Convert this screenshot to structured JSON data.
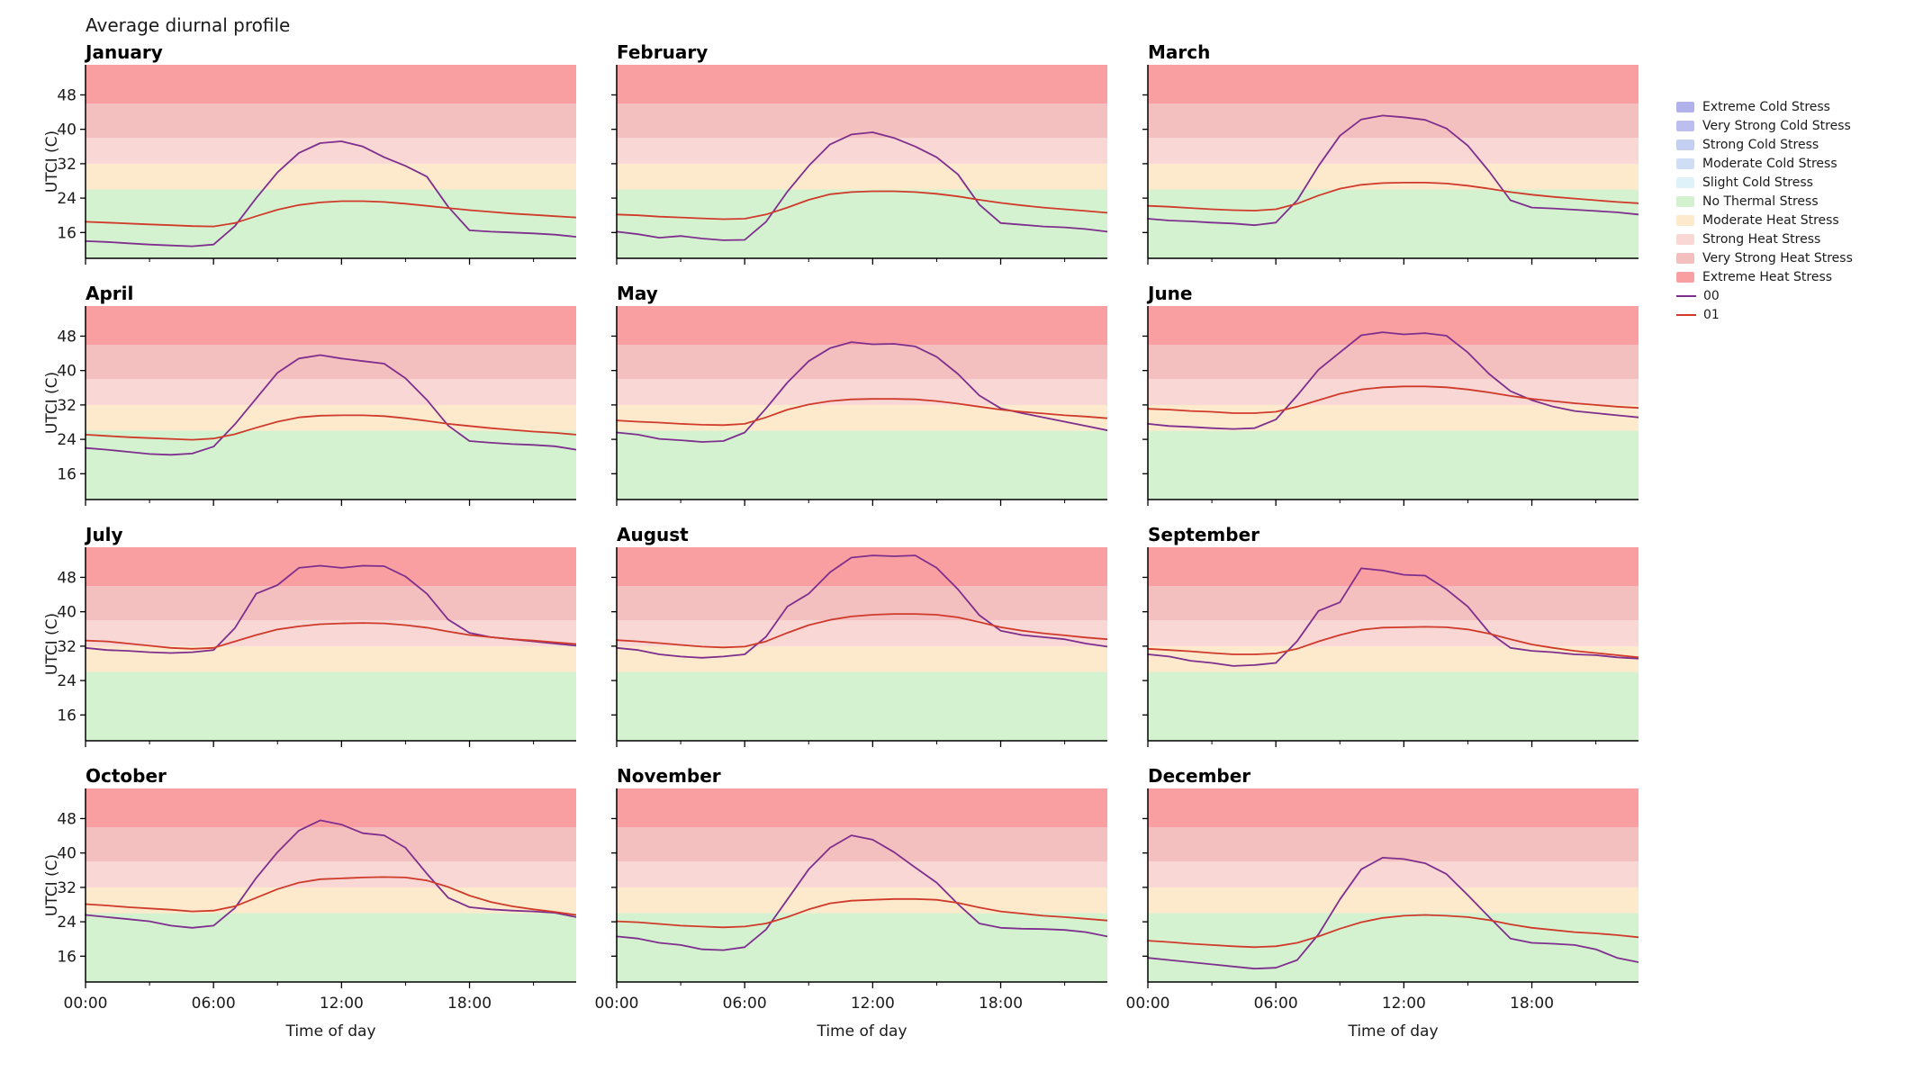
{
  "title": "Average diurnal profile",
  "chart_data": {
    "type": "line",
    "xlabel": "Time of day",
    "ylabel": "UTCI (C)",
    "x_ticks": [
      "00:00",
      "06:00",
      "12:00",
      "18:00"
    ],
    "x_tick_hours": [
      0,
      6,
      12,
      18
    ],
    "x_minor_hours": [
      3,
      9,
      15,
      21
    ],
    "y_ticks": [
      16,
      24,
      32,
      40,
      48
    ],
    "ylim": [
      10,
      55
    ],
    "xlim_hours": [
      0,
      23
    ],
    "bands": [
      {
        "label": "Extreme Cold Stress",
        "color": "#b1b1eb",
        "from": -100,
        "to": -40
      },
      {
        "label": "Very Strong Cold Stress",
        "color": "#bbbeee",
        "from": -40,
        "to": -27
      },
      {
        "label": "Strong Cold Stress",
        "color": "#c5cff2",
        "from": -27,
        "to": -13
      },
      {
        "label": "Moderate Cold Stress",
        "color": "#d0def5",
        "from": -13,
        "to": 0
      },
      {
        "label": "Slight Cold Stress",
        "color": "#def2fa",
        "from": 0,
        "to": 9
      },
      {
        "label": "No Thermal Stress",
        "color": "#d5f2d0",
        "from": 9,
        "to": 26
      },
      {
        "label": "Moderate Heat Stress",
        "color": "#fdeacc",
        "from": 26,
        "to": 32
      },
      {
        "label": "Strong Heat Stress",
        "color": "#f8d7d4",
        "from": 32,
        "to": 38
      },
      {
        "label": "Very Strong Heat Stress",
        "color": "#f4bfbf",
        "from": 38,
        "to": 46
      },
      {
        "label": "Extreme Heat Stress",
        "color": "#f99fa1",
        "from": 46,
        "to": 100
      }
    ],
    "series": [
      {
        "name": "00",
        "color": "#7e2f8e"
      },
      {
        "name": "01",
        "color": "#d03a2b"
      }
    ],
    "months": [
      {
        "name": "January",
        "values": [
          [
            14,
            13.8,
            13.5,
            13.2,
            13,
            12.8,
            13.2,
            17.5,
            24,
            30,
            34.5,
            36.8,
            37.2,
            36,
            33.5,
            31.5,
            29,
            22,
            16.5,
            16.2,
            16,
            15.8,
            15.5,
            15
          ],
          [
            18.5,
            18.3,
            18.1,
            17.9,
            17.7,
            17.5,
            17.4,
            18.2,
            19.8,
            21.3,
            22.4,
            23,
            23.3,
            23.3,
            23.1,
            22.7,
            22.2,
            21.7,
            21.2,
            20.8,
            20.4,
            20.1,
            19.8,
            19.5
          ]
        ]
      },
      {
        "name": "February",
        "values": [
          [
            16.2,
            15.6,
            14.8,
            15.2,
            14.6,
            14.2,
            14.3,
            18.5,
            25.5,
            31.5,
            36.5,
            38.8,
            39.3,
            38,
            36,
            33.5,
            29.5,
            22.5,
            18.2,
            17.8,
            17.4,
            17.2,
            16.8,
            16.2
          ],
          [
            20.2,
            20,
            19.7,
            19.5,
            19.3,
            19.1,
            19.2,
            20.2,
            21.8,
            23.6,
            24.9,
            25.4,
            25.6,
            25.6,
            25.4,
            25,
            24.4,
            23.6,
            22.9,
            22.3,
            21.8,
            21.4,
            21,
            20.6
          ]
        ]
      },
      {
        "name": "March",
        "values": [
          [
            19.2,
            18.8,
            18.6,
            18.3,
            18.1,
            17.7,
            18.3,
            23.5,
            31.5,
            38.5,
            42.3,
            43.2,
            42.8,
            42.2,
            40.2,
            36.2,
            30.2,
            23.5,
            21.8,
            21.6,
            21.3,
            21,
            20.7,
            20.2
          ],
          [
            22.2,
            22,
            21.7,
            21.4,
            21.2,
            21.1,
            21.4,
            22.7,
            24.6,
            26.2,
            27.1,
            27.5,
            27.6,
            27.6,
            27.4,
            26.9,
            26.2,
            25.4,
            24.8,
            24.3,
            23.9,
            23.5,
            23.1,
            22.8
          ]
        ]
      },
      {
        "name": "April",
        "values": [
          [
            22,
            21.6,
            21.1,
            20.6,
            20.4,
            20.7,
            22.3,
            27.5,
            33.5,
            39.5,
            42.8,
            43.6,
            42.8,
            42.2,
            41.6,
            38.2,
            33.2,
            27.2,
            23.6,
            23.2,
            22.9,
            22.7,
            22.4,
            21.6
          ],
          [
            25.1,
            24.8,
            24.5,
            24.3,
            24.1,
            23.9,
            24.2,
            25.2,
            26.7,
            28.1,
            29.1,
            29.5,
            29.6,
            29.6,
            29.4,
            28.9,
            28.3,
            27.6,
            27.1,
            26.6,
            26.2,
            25.8,
            25.5,
            25.1
          ]
        ]
      },
      {
        "name": "May",
        "values": [
          [
            25.6,
            25.1,
            24.1,
            23.8,
            23.4,
            23.6,
            25.6,
            31.2,
            37.2,
            42.2,
            45.2,
            46.6,
            46.1,
            46.2,
            45.6,
            43.2,
            39.2,
            34.2,
            31.2,
            30.1,
            29.1,
            28.1,
            27.1,
            26.1
          ],
          [
            28.4,
            28.1,
            27.9,
            27.6,
            27.4,
            27.3,
            27.6,
            29.1,
            30.9,
            32.1,
            32.9,
            33.3,
            33.4,
            33.4,
            33.3,
            32.9,
            32.3,
            31.6,
            30.9,
            30.4,
            30,
            29.6,
            29.3,
            28.9
          ]
        ]
      },
      {
        "name": "June",
        "values": [
          [
            27.6,
            27.1,
            26.9,
            26.6,
            26.4,
            26.6,
            28.6,
            34.2,
            40.2,
            44.2,
            48.2,
            48.9,
            48.4,
            48.7,
            48.1,
            44.2,
            39.2,
            35.2,
            33.1,
            31.6,
            30.6,
            30.1,
            29.6,
            29.1
          ],
          [
            31.1,
            30.9,
            30.6,
            30.4,
            30.1,
            30.1,
            30.4,
            31.6,
            33.1,
            34.6,
            35.6,
            36.1,
            36.3,
            36.3,
            36.1,
            35.6,
            34.9,
            34.1,
            33.4,
            32.9,
            32.4,
            32,
            31.6,
            31.3
          ]
        ]
      },
      {
        "name": "July",
        "values": [
          [
            31.6,
            31.1,
            30.9,
            30.6,
            30.4,
            30.6,
            31.1,
            36.2,
            44.2,
            46.2,
            50.2,
            50.7,
            50.2,
            50.7,
            50.6,
            48.2,
            44.2,
            38.2,
            35.1,
            34.1,
            33.6,
            33.1,
            32.6,
            32.1
          ],
          [
            33.3,
            33.1,
            32.6,
            32.1,
            31.6,
            31.4,
            31.6,
            33.1,
            34.6,
            35.9,
            36.6,
            37.1,
            37.3,
            37.4,
            37.3,
            36.9,
            36.3,
            35.4,
            34.6,
            34.1,
            33.6,
            33.3,
            32.9,
            32.5
          ]
        ]
      },
      {
        "name": "August",
        "values": [
          [
            31.6,
            31.1,
            30.1,
            29.6,
            29.3,
            29.6,
            30.1,
            34.2,
            41.2,
            44.2,
            49.2,
            52.6,
            53.1,
            52.9,
            53.1,
            50.2,
            45.2,
            39.2,
            35.6,
            34.6,
            34.1,
            33.6,
            32.6,
            31.9
          ],
          [
            33.4,
            33.1,
            32.7,
            32.3,
            31.9,
            31.7,
            31.9,
            33.1,
            35.1,
            36.9,
            38.1,
            38.9,
            39.3,
            39.5,
            39.5,
            39.3,
            38.7,
            37.6,
            36.4,
            35.6,
            35,
            34.5,
            34,
            33.6
          ]
        ]
      },
      {
        "name": "September",
        "values": [
          [
            30.1,
            29.6,
            28.6,
            28.1,
            27.4,
            27.6,
            28.1,
            33.2,
            40.2,
            42.2,
            50.1,
            49.6,
            48.6,
            48.4,
            45.2,
            41.2,
            35.2,
            31.6,
            30.9,
            30.6,
            30.1,
            29.9,
            29.4,
            29.1
          ],
          [
            31.4,
            31.1,
            30.8,
            30.4,
            30.1,
            30.1,
            30.3,
            31.4,
            33.1,
            34.6,
            35.8,
            36.3,
            36.4,
            36.5,
            36.4,
            35.9,
            34.9,
            33.6,
            32.4,
            31.6,
            30.9,
            30.4,
            29.9,
            29.4
          ]
        ]
      },
      {
        "name": "October",
        "values": [
          [
            25.6,
            25.1,
            24.6,
            24.1,
            23.1,
            22.6,
            23.1,
            27.2,
            34.2,
            40.2,
            45.2,
            47.6,
            46.6,
            44.6,
            44.1,
            41.2,
            35.2,
            29.6,
            27.4,
            26.9,
            26.6,
            26.4,
            26.1,
            25.1
          ],
          [
            28.1,
            27.8,
            27.4,
            27.1,
            26.8,
            26.4,
            26.6,
            27.6,
            29.6,
            31.6,
            33.1,
            33.9,
            34.1,
            34.3,
            34.4,
            34.3,
            33.6,
            32.1,
            30.1,
            28.6,
            27.6,
            26.9,
            26.3,
            25.6
          ]
        ]
      },
      {
        "name": "November",
        "values": [
          [
            20.6,
            20.1,
            19.1,
            18.6,
            17.6,
            17.4,
            18.1,
            22.2,
            29.2,
            36.2,
            41.2,
            44.1,
            43.1,
            40.2,
            36.6,
            33.1,
            28.1,
            23.6,
            22.6,
            22.4,
            22.3,
            22.1,
            21.6,
            20.6
          ],
          [
            24.1,
            23.9,
            23.5,
            23.1,
            22.9,
            22.7,
            22.9,
            23.6,
            25.1,
            26.9,
            28.3,
            28.9,
            29.1,
            29.3,
            29.3,
            29.1,
            28.4,
            27.3,
            26.4,
            25.9,
            25.4,
            25.1,
            24.7,
            24.3
          ]
        ]
      },
      {
        "name": "December",
        "values": [
          [
            15.6,
            15.1,
            14.6,
            14.1,
            13.6,
            13.1,
            13.3,
            15.1,
            21.1,
            29.2,
            36.2,
            38.9,
            38.6,
            37.6,
            35.1,
            30.2,
            25.1,
            20.1,
            19.1,
            18.9,
            18.6,
            17.6,
            15.6,
            14.6
          ],
          [
            19.6,
            19.3,
            18.9,
            18.6,
            18.3,
            18.1,
            18.3,
            19.1,
            20.6,
            22.4,
            23.9,
            24.9,
            25.4,
            25.6,
            25.4,
            25.1,
            24.4,
            23.4,
            22.6,
            22.1,
            21.6,
            21.3,
            20.9,
            20.4
          ]
        ]
      }
    ]
  }
}
